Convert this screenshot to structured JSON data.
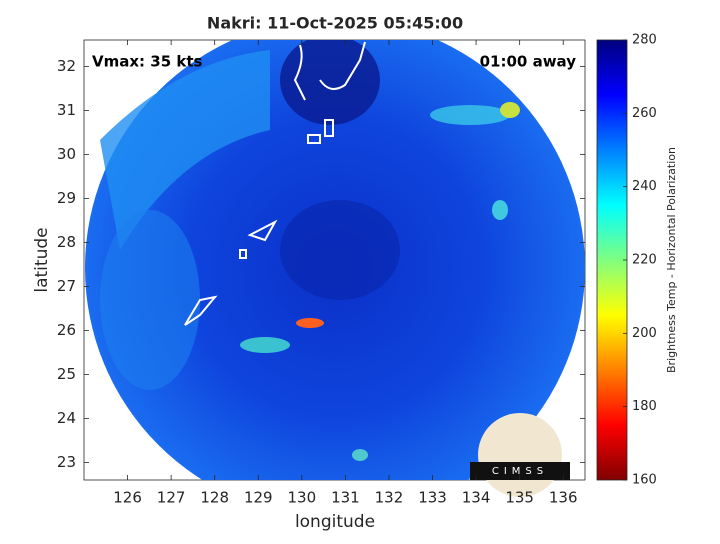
{
  "chart_data": {
    "type": "image",
    "title": "Nakri: 11-Oct-2025 05:45:00",
    "x_label": "longitude",
    "y_label": "latitude",
    "xlim": [
      125,
      136.5
    ],
    "xticks": [
      126,
      127,
      128,
      129,
      130,
      131,
      132,
      133,
      134,
      135,
      136
    ],
    "ylim": [
      22.6,
      32.6
    ],
    "yticks": [
      23,
      24,
      25,
      26,
      27,
      28,
      29,
      30,
      31,
      32
    ],
    "annotations": [
      "Vmax: 35 kts",
      "01:00 away"
    ],
    "colorbar": {
      "label": "Brightness Temp - Horizontal Polarization",
      "clim": [
        160,
        280
      ],
      "ticks": [
        160,
        180,
        200,
        220,
        240,
        260,
        280
      ],
      "colormap": [
        "#800000",
        "#ff0000",
        "#ff8000",
        "#ffff00",
        "#80ff80",
        "#00ffff",
        "#0080ff",
        "#0000ff",
        "#000080"
      ]
    },
    "logo_text": "CIMSS"
  }
}
